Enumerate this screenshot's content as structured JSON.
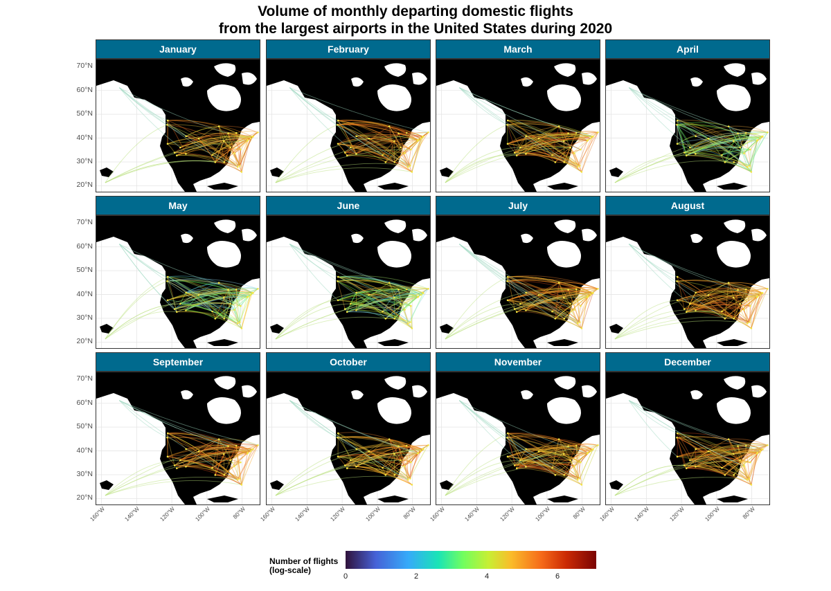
{
  "title": {
    "line1": "Volume of monthly departing domestic flights",
    "line2": "from the largest airports in the United States during 2020"
  },
  "panels": [
    {
      "label": "January"
    },
    {
      "label": "February"
    },
    {
      "label": "March"
    },
    {
      "label": "April"
    },
    {
      "label": "May"
    },
    {
      "label": "June"
    },
    {
      "label": "July"
    },
    {
      "label": "August"
    },
    {
      "label": "September"
    },
    {
      "label": "October"
    },
    {
      "label": "November"
    },
    {
      "label": "December"
    }
  ],
  "axes": {
    "y_ticks": [
      "70°N",
      "60°N",
      "50°N",
      "40°N",
      "30°N",
      "20°N"
    ],
    "x_ticks": [
      "160°W",
      "140°W",
      "120°W",
      "100°W",
      "80°W"
    ]
  },
  "legend": {
    "title_line1": "Number of flights",
    "title_line2": "(log-scale)",
    "ticks": [
      "0",
      "2",
      "4",
      "6"
    ]
  },
  "colors": {
    "strip": "#006a8e",
    "land": "#000000",
    "scale": [
      "#30123b",
      "#4662d7",
      "#36aaf9",
      "#1ae4b6",
      "#72fe5e",
      "#c7ef34",
      "#fabc2a",
      "#f66b19",
      "#cb2a04",
      "#7a0403"
    ]
  }
}
